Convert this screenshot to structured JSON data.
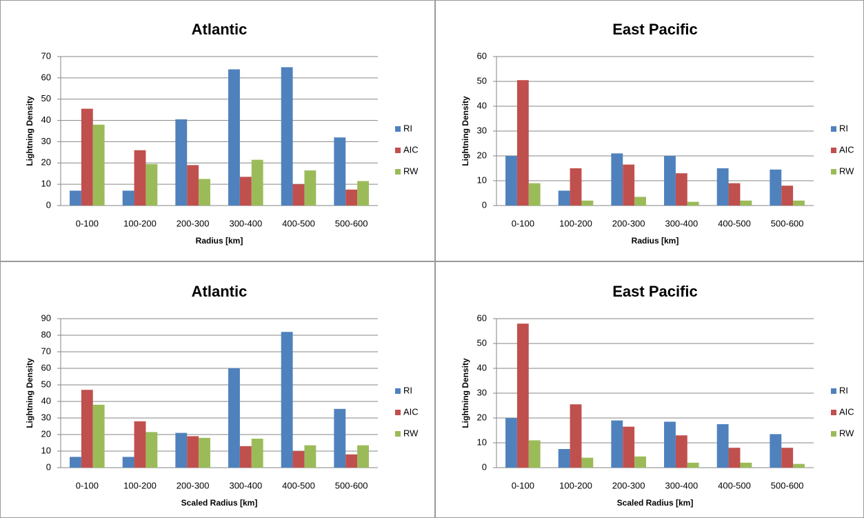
{
  "chart_data": [
    {
      "type": "bar",
      "title": "Atlantic",
      "x_label": "Radius [km]",
      "y_label": "Lightning Density",
      "categories": [
        "0-100",
        "100-200",
        "200-300",
        "300-400",
        "400-500",
        "500-600"
      ],
      "series": [
        {
          "name": "RI",
          "color": "#4f81bd",
          "values": [
            7,
            7,
            40.5,
            64,
            65,
            32
          ]
        },
        {
          "name": "AIC",
          "color": "#c0504d",
          "values": [
            45.5,
            26,
            19,
            13.5,
            10,
            7.5
          ]
        },
        {
          "name": "RW",
          "color": "#9bbb59",
          "values": [
            38,
            19.5,
            12.5,
            21.5,
            16.5,
            11.5
          ]
        }
      ],
      "ylim": [
        0,
        70
      ],
      "yticks": [
        0,
        10,
        20,
        30,
        40,
        50,
        60,
        70
      ],
      "grid": true,
      "legend": "right"
    },
    {
      "type": "bar",
      "title": "East Pacific",
      "x_label": "Radius [km]",
      "y_label": "Lightning Density",
      "categories": [
        "0-100",
        "100-200",
        "200-300",
        "300-400",
        "400-500",
        "500-600"
      ],
      "series": [
        {
          "name": "RI",
          "color": "#4f81bd",
          "values": [
            20,
            6,
            21,
            20,
            15,
            14.5
          ]
        },
        {
          "name": "AIC",
          "color": "#c0504d",
          "values": [
            50.5,
            15,
            16.5,
            13,
            9,
            8
          ]
        },
        {
          "name": "RW",
          "color": "#9bbb59",
          "values": [
            9,
            2,
            3.5,
            1.5,
            2,
            2
          ]
        }
      ],
      "ylim": [
        0,
        60
      ],
      "yticks": [
        0,
        10,
        20,
        30,
        40,
        50,
        60
      ],
      "grid": true,
      "legend": "right"
    },
    {
      "type": "bar",
      "title": "Atlantic",
      "x_label": "Scaled Radius [km]",
      "y_label": "Lightning Density",
      "categories": [
        "0-100",
        "100-200",
        "200-300",
        "300-400",
        "400-500",
        "500-600"
      ],
      "series": [
        {
          "name": "RI",
          "color": "#4f81bd",
          "values": [
            6.5,
            6.5,
            21,
            60,
            82,
            35.5
          ]
        },
        {
          "name": "AIC",
          "color": "#c0504d",
          "values": [
            47,
            28,
            19,
            13,
            10,
            8
          ]
        },
        {
          "name": "RW",
          "color": "#9bbb59",
          "values": [
            38,
            21.5,
            18,
            17.5,
            13.5,
            13.5
          ]
        }
      ],
      "ylim": [
        0,
        90
      ],
      "yticks": [
        0,
        10,
        20,
        30,
        40,
        50,
        60,
        70,
        80,
        90
      ],
      "grid": true,
      "legend": "right"
    },
    {
      "type": "bar",
      "title": "East Pacific",
      "x_label": "Scaled Radius [km]",
      "y_label": "Lightning Density",
      "categories": [
        "0-100",
        "100-200",
        "200-300",
        "300-400",
        "400-500",
        "500-600"
      ],
      "series": [
        {
          "name": "RI",
          "color": "#4f81bd",
          "values": [
            20,
            7.5,
            19,
            18.5,
            17.5,
            13.5
          ]
        },
        {
          "name": "AIC",
          "color": "#c0504d",
          "values": [
            58,
            25.5,
            16.5,
            13,
            8,
            8
          ]
        },
        {
          "name": "RW",
          "color": "#9bbb59",
          "values": [
            11,
            4,
            4.5,
            2,
            2,
            1.5
          ]
        }
      ],
      "ylim": [
        0,
        60
      ],
      "yticks": [
        0,
        10,
        20,
        30,
        40,
        50,
        60
      ],
      "grid": true,
      "legend": "right"
    }
  ]
}
